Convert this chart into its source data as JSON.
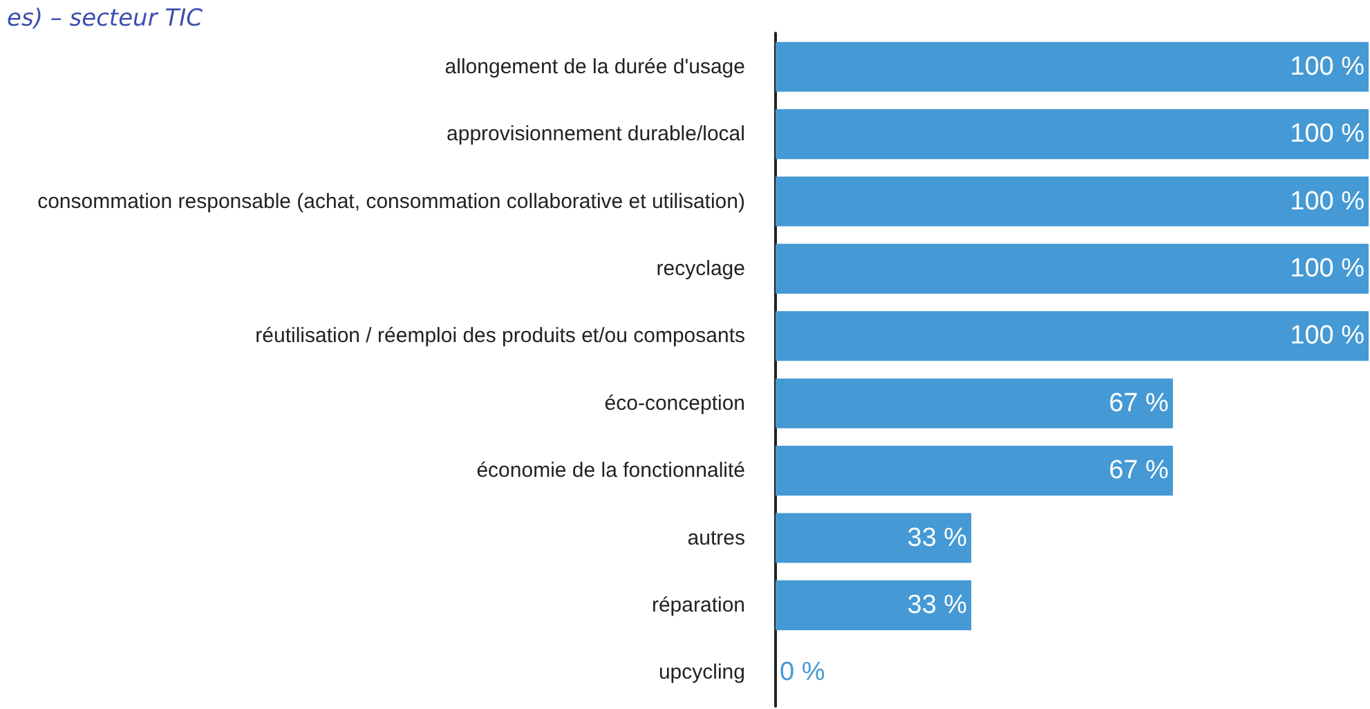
{
  "chart_data": {
    "type": "bar",
    "orientation": "horizontal",
    "title": "es) – secteur TIC",
    "categories": [
      "allongement de la durée d'usage",
      "approvisionnement durable/local",
      "consommation responsable (achat, consommation collaborative et utilisation)",
      "recyclage",
      "réutilisation / réemploi des produits et/ou composants",
      "éco-conception",
      "économie de la fonctionnalité",
      "autres",
      "réparation",
      "upcycling"
    ],
    "values": [
      100,
      100,
      100,
      100,
      100,
      67,
      67,
      33,
      33,
      0
    ],
    "value_labels": [
      "100 %",
      "100 %",
      "100 %",
      "100 %",
      "100 %",
      "67 %",
      "67 %",
      "33 %",
      "33 %",
      "0 %"
    ],
    "color": "#4599d4",
    "xlim": [
      0,
      100
    ],
    "tick_labels": "y"
  }
}
